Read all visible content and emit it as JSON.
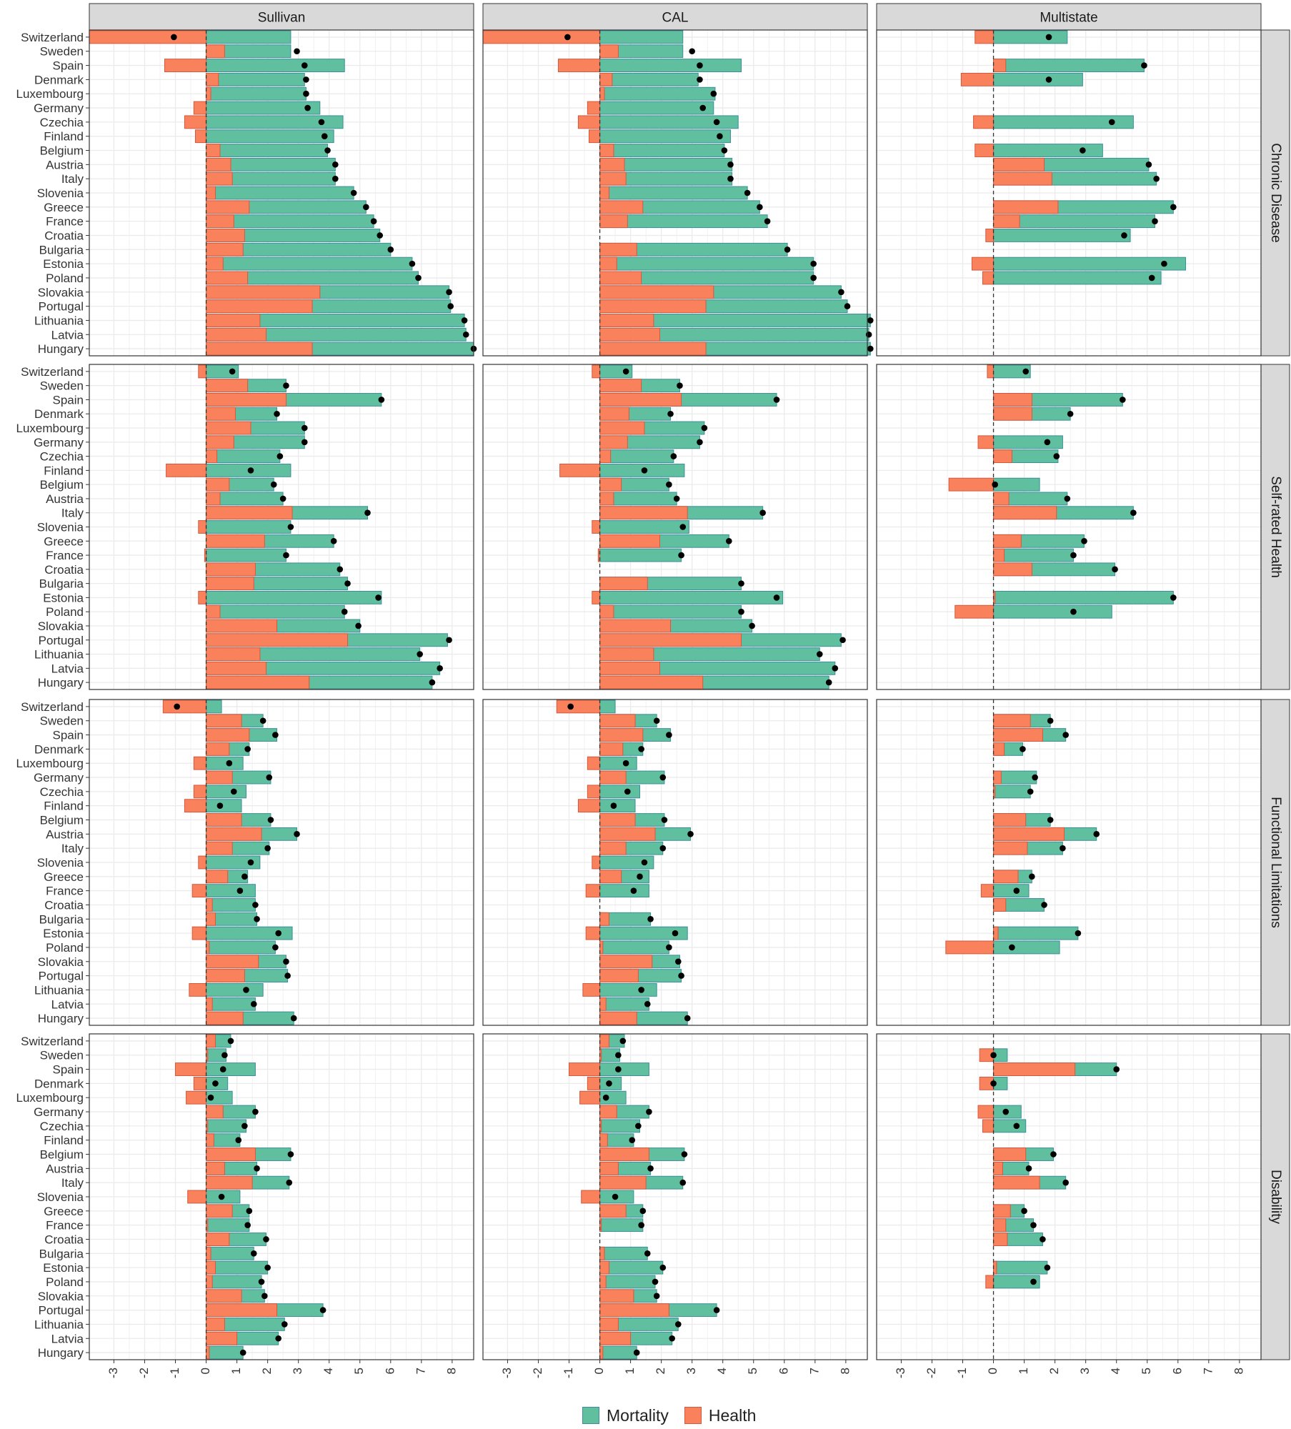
{
  "colors": {
    "mortality": "#5fbf9f",
    "mortality_border": "#3d8f9a",
    "health": "#f9825d",
    "health_border": "#d4593e",
    "strip": "#d9d9d9",
    "grid": "#ebebeb"
  },
  "chart_data": {
    "type": "bar",
    "facet_cols": [
      "Sullivan",
      "CAL",
      "Multistate"
    ],
    "facet_rows": [
      "Chronic Disease",
      "Self-rated Health",
      "Functional Limitations",
      "Disability"
    ],
    "countries": [
      "Switzerland",
      "Sweden",
      "Spain",
      "Denmark",
      "Luxembourg",
      "Germany",
      "Czechia",
      "Finland",
      "Belgium",
      "Austria",
      "Italy",
      "Slovenia",
      "Greece",
      "France",
      "Croatia",
      "Bulgaria",
      "Estonia",
      "Poland",
      "Slovakia",
      "Portugal",
      "Lithuania",
      "Latvia",
      "Hungary"
    ],
    "x_ticks": [
      "-3",
      "-2",
      "-1",
      "0",
      "1",
      "2",
      "3",
      "4",
      "5",
      "6",
      "7",
      "8"
    ],
    "xlim": [
      -3.8,
      8.7
    ],
    "legend": [
      {
        "key": "mortality",
        "label": "Mortality"
      },
      {
        "key": "health",
        "label": "Health"
      }
    ],
    "legend_position": "bottom",
    "grid": true,
    "reference_line": 0,
    "panels": [
      {
        "row": 0,
        "col": 0,
        "mortality": [
          2.75,
          2.75,
          4.5,
          3.2,
          3.25,
          3.7,
          4.45,
          4.15,
          3.95,
          4.2,
          4.2,
          4.8,
          5.2,
          5.45,
          5.65,
          6.0,
          6.7,
          6.9,
          7.9,
          7.95,
          8.4,
          8.45,
          8.7
        ],
        "health": [
          -3.8,
          0.6,
          -1.35,
          0.4,
          0.15,
          -0.4,
          -0.7,
          -0.35,
          0.45,
          0.8,
          0.85,
          0.3,
          1.4,
          0.9,
          1.25,
          1.2,
          0.55,
          1.35,
          3.7,
          3.45,
          1.75,
          1.95,
          3.45
        ],
        "total": [
          -1.05,
          2.95,
          3.2,
          3.25,
          3.25,
          3.3,
          3.75,
          3.85,
          3.95,
          4.2,
          4.2,
          4.8,
          5.2,
          5.45,
          5.65,
          6.0,
          6.7,
          6.9,
          7.9,
          7.95,
          8.4,
          8.45,
          8.7
        ]
      },
      {
        "row": 0,
        "col": 1,
        "mortality": [
          2.7,
          2.7,
          4.6,
          3.2,
          3.75,
          3.7,
          4.5,
          4.25,
          4.05,
          4.3,
          4.3,
          4.8,
          5.2,
          5.45,
          null,
          6.1,
          6.95,
          6.95,
          7.85,
          8.05,
          8.8,
          8.75,
          8.8
        ],
        "health": [
          -3.8,
          0.6,
          -1.35,
          0.4,
          0.15,
          -0.4,
          -0.7,
          -0.35,
          0.45,
          0.8,
          0.85,
          0.3,
          1.4,
          0.9,
          null,
          1.2,
          0.55,
          1.35,
          3.7,
          3.45,
          1.75,
          1.95,
          3.45
        ],
        "total": [
          -1.05,
          3.0,
          3.25,
          3.25,
          3.7,
          3.35,
          3.8,
          3.9,
          4.05,
          4.25,
          4.25,
          4.8,
          5.2,
          5.45,
          null,
          6.1,
          6.95,
          6.95,
          7.85,
          8.05,
          8.8,
          8.75,
          8.8
        ]
      },
      {
        "row": 0,
        "col": 2,
        "mortality": [
          2.4,
          null,
          4.9,
          2.9,
          null,
          null,
          4.55,
          null,
          3.55,
          5.05,
          5.3,
          null,
          5.85,
          5.25,
          4.45,
          null,
          6.25,
          5.45,
          null,
          null,
          null,
          null,
          null
        ],
        "health": [
          -0.6,
          null,
          0.4,
          -1.05,
          null,
          null,
          -0.65,
          null,
          -0.6,
          1.65,
          1.9,
          null,
          2.1,
          0.85,
          -0.25,
          null,
          -0.7,
          -0.35,
          null,
          null,
          null,
          null,
          null
        ],
        "total": [
          1.8,
          null,
          4.9,
          1.8,
          null,
          null,
          3.85,
          null,
          2.9,
          5.05,
          5.3,
          null,
          5.85,
          5.25,
          4.25,
          null,
          5.55,
          5.15,
          null,
          null,
          null,
          null,
          null
        ]
      },
      {
        "row": 1,
        "col": 0,
        "mortality": [
          1.05,
          2.6,
          5.7,
          2.3,
          3.2,
          3.2,
          2.4,
          2.75,
          2.2,
          2.5,
          5.25,
          2.75,
          4.15,
          2.6,
          4.35,
          4.6,
          5.7,
          4.5,
          5.0,
          7.85,
          6.95,
          7.6,
          7.35
        ],
        "health": [
          -0.25,
          1.35,
          2.6,
          0.95,
          1.45,
          0.9,
          0.35,
          -1.3,
          0.75,
          0.45,
          2.8,
          -0.25,
          1.9,
          -0.05,
          1.6,
          1.55,
          -0.25,
          0.45,
          2.3,
          4.6,
          1.75,
          1.95,
          3.35
        ],
        "total": [
          0.85,
          2.6,
          5.7,
          2.3,
          3.2,
          3.2,
          2.4,
          1.45,
          2.2,
          2.5,
          5.25,
          2.75,
          4.15,
          2.6,
          4.35,
          4.6,
          5.6,
          4.5,
          4.95,
          7.9,
          6.95,
          7.6,
          7.35
        ]
      },
      {
        "row": 1,
        "col": 1,
        "mortality": [
          1.05,
          2.6,
          5.75,
          2.3,
          3.4,
          3.25,
          2.4,
          2.75,
          2.25,
          2.5,
          5.3,
          2.9,
          4.2,
          2.65,
          null,
          4.6,
          5.95,
          4.6,
          4.95,
          7.85,
          7.15,
          7.65,
          7.45
        ],
        "health": [
          -0.25,
          1.35,
          2.65,
          0.95,
          1.45,
          0.9,
          0.35,
          -1.3,
          0.7,
          0.45,
          2.85,
          -0.25,
          1.95,
          -0.05,
          null,
          1.55,
          -0.25,
          0.45,
          2.3,
          4.6,
          1.75,
          1.95,
          3.35
        ],
        "total": [
          0.85,
          2.6,
          5.75,
          2.3,
          3.4,
          3.25,
          2.4,
          1.45,
          2.25,
          2.5,
          5.3,
          2.7,
          4.2,
          2.65,
          null,
          4.6,
          5.75,
          4.6,
          4.95,
          7.9,
          7.15,
          7.65,
          7.45
        ]
      },
      {
        "row": 1,
        "col": 2,
        "mortality": [
          1.2,
          null,
          4.2,
          2.5,
          null,
          2.25,
          2.1,
          null,
          1.5,
          2.4,
          4.55,
          null,
          2.95,
          2.6,
          3.95,
          null,
          5.85,
          3.85,
          null,
          null,
          null,
          null,
          null
        ],
        "health": [
          -0.2,
          null,
          1.25,
          1.25,
          null,
          -0.5,
          0.6,
          null,
          -1.45,
          0.5,
          2.05,
          null,
          0.9,
          0.35,
          1.25,
          null,
          0.05,
          -1.25,
          null,
          null,
          null,
          null,
          null
        ],
        "total": [
          1.05,
          null,
          4.2,
          2.5,
          null,
          1.75,
          2.05,
          null,
          0.05,
          2.4,
          4.55,
          null,
          2.95,
          2.6,
          3.95,
          null,
          5.85,
          2.6,
          null,
          null,
          null,
          null,
          null
        ]
      },
      {
        "row": 2,
        "col": 0,
        "mortality": [
          0.5,
          1.85,
          2.3,
          1.4,
          1.2,
          2.1,
          1.3,
          1.15,
          2.1,
          2.95,
          2.05,
          1.75,
          1.35,
          1.6,
          1.6,
          1.65,
          2.8,
          2.25,
          2.6,
          2.65,
          1.85,
          1.6,
          2.85
        ],
        "health": [
          -1.4,
          1.15,
          1.4,
          0.75,
          -0.4,
          0.85,
          -0.4,
          -0.7,
          1.15,
          1.8,
          0.85,
          -0.25,
          0.7,
          -0.45,
          0.2,
          0.3,
          -0.45,
          0.1,
          1.7,
          1.25,
          -0.55,
          0.2,
          1.2
        ],
        "total": [
          -0.95,
          1.85,
          2.25,
          1.35,
          0.75,
          2.05,
          0.9,
          0.45,
          2.1,
          2.95,
          2.0,
          1.45,
          1.25,
          1.1,
          1.6,
          1.65,
          2.35,
          2.25,
          2.6,
          2.65,
          1.3,
          1.55,
          2.85
        ],
        "health_label_shift": true
      },
      {
        "row": 2,
        "col": 1,
        "mortality": [
          0.5,
          1.85,
          2.3,
          1.4,
          1.2,
          2.1,
          1.3,
          1.15,
          2.1,
          2.95,
          2.05,
          1.75,
          1.6,
          1.6,
          null,
          1.65,
          2.85,
          2.25,
          2.6,
          2.65,
          1.85,
          1.6,
          2.85
        ],
        "health": [
          -1.4,
          1.15,
          1.4,
          0.75,
          -0.4,
          0.85,
          -0.4,
          -0.7,
          1.15,
          1.8,
          0.85,
          -0.25,
          0.7,
          -0.45,
          null,
          0.3,
          -0.45,
          0.1,
          1.7,
          1.25,
          -0.55,
          0.2,
          1.2
        ],
        "total": [
          -0.95,
          1.85,
          2.25,
          1.35,
          0.85,
          2.05,
          0.9,
          0.45,
          2.1,
          2.95,
          2.05,
          1.45,
          1.3,
          1.1,
          null,
          1.65,
          2.45,
          2.25,
          2.55,
          2.65,
          1.35,
          1.55,
          2.85
        ]
      },
      {
        "row": 2,
        "col": 2,
        "mortality": [
          null,
          1.85,
          2.35,
          0.95,
          null,
          1.4,
          1.2,
          null,
          1.85,
          3.35,
          2.25,
          null,
          1.25,
          1.15,
          1.65,
          null,
          2.75,
          2.15,
          null,
          null,
          null,
          null,
          null
        ],
        "health": [
          null,
          1.2,
          1.6,
          0.35,
          null,
          0.25,
          0.05,
          null,
          1.05,
          2.3,
          1.1,
          null,
          0.8,
          -0.4,
          0.4,
          null,
          0.15,
          -1.55,
          null,
          null,
          null,
          null,
          null
        ],
        "total": [
          null,
          1.85,
          2.35,
          0.95,
          null,
          1.35,
          1.2,
          null,
          1.85,
          3.35,
          2.25,
          null,
          1.25,
          0.75,
          1.65,
          null,
          2.75,
          0.6,
          null,
          null,
          null,
          null,
          null
        ]
      },
      {
        "row": 3,
        "col": 0,
        "mortality": [
          0.8,
          0.65,
          1.6,
          0.7,
          0.85,
          1.6,
          1.3,
          1.1,
          2.75,
          1.65,
          2.7,
          1.1,
          1.4,
          1.4,
          1.95,
          1.55,
          2.0,
          1.8,
          1.9,
          3.8,
          2.55,
          2.35,
          1.2
        ],
        "health": [
          0.3,
          0.05,
          -1.0,
          -0.4,
          -0.65,
          0.55,
          0.05,
          0.25,
          1.6,
          0.6,
          1.5,
          -0.6,
          0.85,
          0.05,
          0.75,
          0.15,
          0.3,
          0.2,
          1.15,
          2.3,
          0.6,
          1.0,
          0.1
        ],
        "total": [
          0.8,
          0.6,
          0.55,
          0.3,
          0.15,
          1.6,
          1.25,
          1.05,
          2.75,
          1.65,
          2.7,
          0.5,
          1.4,
          1.35,
          1.95,
          1.55,
          2.0,
          1.8,
          1.9,
          3.8,
          2.55,
          2.35,
          1.2
        ]
      },
      {
        "row": 3,
        "col": 1,
        "mortality": [
          0.8,
          0.65,
          1.6,
          0.7,
          0.85,
          1.6,
          1.3,
          1.1,
          2.75,
          1.65,
          2.7,
          1.1,
          1.4,
          1.4,
          null,
          1.55,
          2.05,
          1.8,
          1.85,
          3.8,
          2.55,
          2.35,
          1.2
        ],
        "health": [
          0.3,
          0.05,
          -1.0,
          -0.4,
          -0.65,
          0.55,
          0.05,
          0.25,
          1.6,
          0.6,
          1.5,
          -0.6,
          0.85,
          0.05,
          null,
          0.15,
          0.3,
          0.2,
          1.1,
          2.25,
          0.6,
          1.0,
          0.1
        ],
        "total": [
          0.75,
          0.6,
          0.6,
          0.3,
          0.2,
          1.6,
          1.25,
          1.05,
          2.75,
          1.65,
          2.7,
          0.5,
          1.4,
          1.35,
          null,
          1.55,
          2.05,
          1.8,
          1.85,
          3.8,
          2.55,
          2.35,
          1.2
        ]
      },
      {
        "row": 3,
        "col": 2,
        "mortality": [
          null,
          0.45,
          4.0,
          0.45,
          null,
          0.9,
          1.05,
          null,
          1.95,
          1.15,
          2.35,
          null,
          1.0,
          1.3,
          1.6,
          null,
          1.75,
          1.5,
          null,
          null,
          null,
          null,
          null
        ],
        "health": [
          null,
          -0.45,
          2.65,
          -0.45,
          null,
          -0.5,
          -0.35,
          null,
          1.05,
          0.3,
          1.5,
          null,
          0.55,
          0.4,
          0.45,
          null,
          0.1,
          -0.25,
          null,
          null,
          null,
          null,
          null
        ],
        "total": [
          null,
          0.0,
          4.0,
          0.0,
          null,
          0.4,
          0.75,
          null,
          1.95,
          1.15,
          2.35,
          null,
          1.0,
          1.3,
          1.6,
          null,
          1.75,
          1.3,
          null,
          null,
          null,
          null,
          null
        ]
      }
    ]
  }
}
